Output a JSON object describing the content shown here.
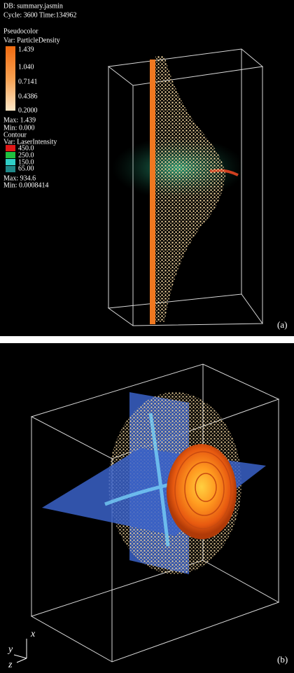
{
  "panel_a": {
    "db": "DB: summary.jasmin",
    "cycle": "Cycle: 3600 Time:134962",
    "plot1": "Pseudocolor",
    "var1": "Var: ParticleDensity",
    "ticks1": [
      "1.439",
      "1.040",
      "0.7141",
      "0.4386",
      "0.2000"
    ],
    "max1": "Max: 1.439",
    "min1": "Min: 0.000",
    "plot2": "Contour",
    "var2": "Var: LaserIntensity",
    "levels": [
      "450.0",
      "250.0",
      "150.0",
      "65.00"
    ],
    "max2": "Max: 934.6",
    "min2": "Min: 0.0008414",
    "label": "(a)"
  },
  "panel_b": {
    "axes": [
      "x",
      "y",
      "z"
    ],
    "label": "(b)"
  }
}
